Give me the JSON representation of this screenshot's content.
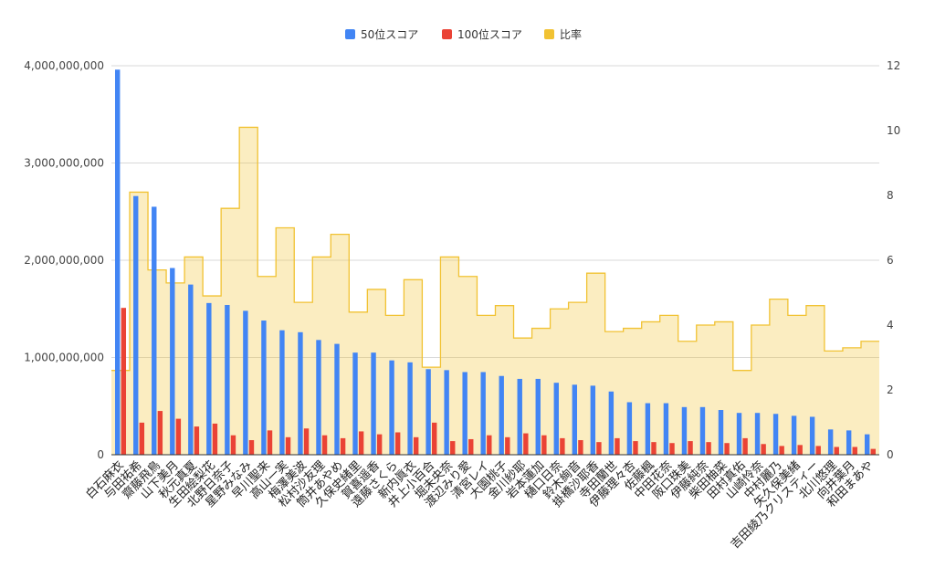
{
  "chart_data": {
    "type": "bar+area",
    "categories": [
      "白石麻衣",
      "与田祐希",
      "齋藤飛鳥",
      "山下美月",
      "秋元真夏",
      "生田絵梨花",
      "北野日奈子",
      "星野みなみ",
      "早川聖来",
      "高山一実",
      "梅澤美波",
      "松村沙友理",
      "筒井あやめ",
      "久保史緒里",
      "賀喜遥香",
      "遠藤さくら",
      "新内眞衣",
      "井上小百合",
      "堀未央奈",
      "渡辺みり愛",
      "清宮レイ",
      "大園桃子",
      "金川紗耶",
      "岩本蓮加",
      "樋口日奈",
      "鈴木絢音",
      "掛橋沙耶香",
      "寺田蘭世",
      "伊藤理々杏",
      "佐藤楓",
      "中田花奈",
      "阪口珠美",
      "伊藤純奈",
      "柴田柚菜",
      "田村真佑",
      "山崎怜奈",
      "中村麗乃",
      "矢久保美緒",
      "吉田綾乃クリスティー",
      "北川悠理",
      "向井葉月",
      "和田まあや"
    ],
    "legend": [
      "50位スコア",
      "100位スコア",
      "比率"
    ],
    "series": [
      {
        "name": "50位スコア",
        "color": "#4285f4",
        "axis": "left",
        "values": [
          3960000000,
          2660000000,
          2550000000,
          1920000000,
          1750000000,
          1560000000,
          1540000000,
          1480000000,
          1380000000,
          1280000000,
          1260000000,
          1180000000,
          1140000000,
          1050000000,
          1050000000,
          970000000,
          950000000,
          880000000,
          870000000,
          850000000,
          850000000,
          810000000,
          780000000,
          780000000,
          740000000,
          720000000,
          710000000,
          650000000,
          540000000,
          530000000,
          530000000,
          490000000,
          490000000,
          460000000,
          430000000,
          430000000,
          420000000,
          400000000,
          390000000,
          260000000,
          250000000,
          210000000
        ]
      },
      {
        "name": "100位スコア",
        "color": "#ea4335",
        "axis": "left",
        "values": [
          1510000000,
          330000000,
          450000000,
          370000000,
          290000000,
          320000000,
          200000000,
          150000000,
          250000000,
          180000000,
          270000000,
          200000000,
          170000000,
          240000000,
          210000000,
          230000000,
          180000000,
          330000000,
          140000000,
          160000000,
          200000000,
          180000000,
          220000000,
          200000000,
          170000000,
          150000000,
          130000000,
          170000000,
          140000000,
          130000000,
          120000000,
          140000000,
          130000000,
          120000000,
          170000000,
          110000000,
          90000000,
          100000000,
          90000000,
          80000000,
          80000000,
          60000000
        ]
      },
      {
        "name": "比率",
        "color": "#f1c232",
        "axis": "right",
        "type": "stepped-area",
        "values": [
          2.6,
          8.1,
          5.7,
          5.3,
          6.1,
          4.9,
          7.6,
          10.1,
          5.5,
          7.0,
          4.7,
          6.1,
          6.8,
          4.4,
          5.1,
          4.3,
          5.4,
          2.7,
          6.1,
          5.5,
          4.3,
          4.6,
          3.6,
          3.9,
          4.5,
          4.7,
          5.6,
          3.8,
          3.9,
          4.1,
          4.3,
          3.5,
          4.0,
          4.1,
          2.6,
          4.0,
          4.8,
          4.3,
          4.6,
          3.2,
          3.3,
          3.5
        ]
      }
    ],
    "y_left": {
      "min": 0,
      "max": 4000000000,
      "ticks": [
        0,
        1000000000,
        2000000000,
        3000000000,
        4000000000
      ],
      "tick_labels": [
        "0",
        "1,000,000,000",
        "2,000,000,000",
        "3,000,000,000",
        "4,000,000,000"
      ]
    },
    "y_right": {
      "min": 0,
      "max": 12,
      "ticks": [
        0,
        2,
        4,
        6,
        8,
        10,
        12
      ],
      "tick_labels": [
        "0",
        "2",
        "4",
        "6",
        "8",
        "10",
        "12"
      ]
    },
    "grid": true,
    "legend_position": "top-center"
  }
}
